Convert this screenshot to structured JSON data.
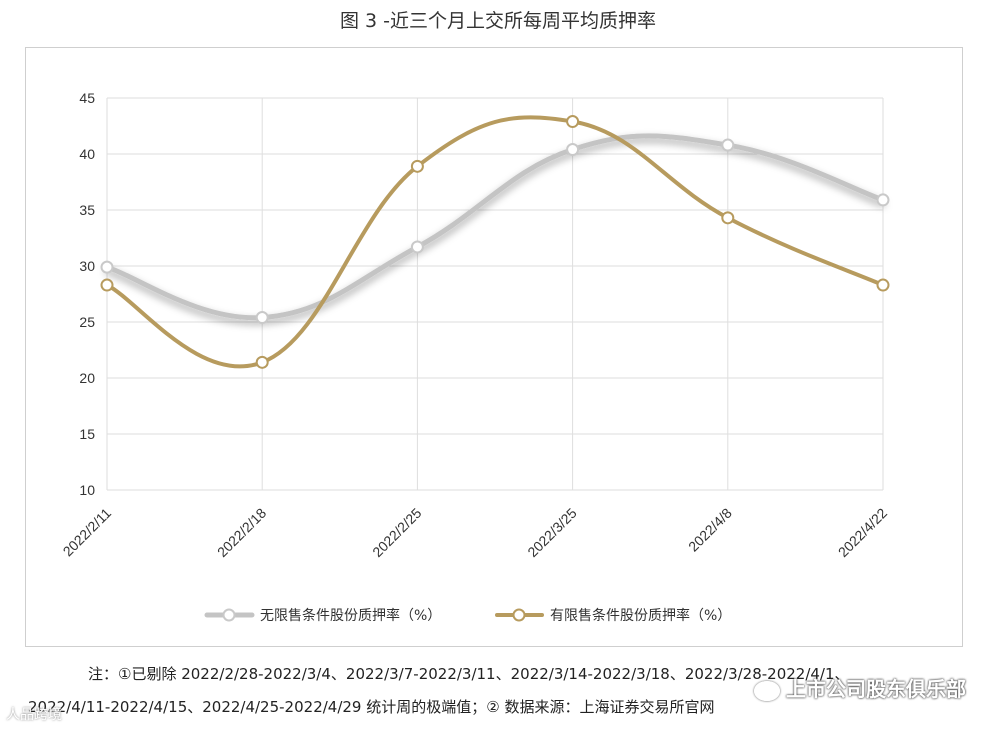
{
  "figure": {
    "title": "图 3 -近三个月上交所每周平均质押率"
  },
  "chart_data": {
    "type": "line",
    "categories": [
      "2022/2/11",
      "2022/2/18",
      "2022/2/25",
      "2022/3/25",
      "2022/4/8",
      "2022/4/22"
    ],
    "y_ticks": [
      "10",
      "15",
      "20",
      "25",
      "30",
      "35",
      "40",
      "45"
    ],
    "ylim": [
      10,
      45
    ],
    "grid": true,
    "legend_position": "bottom",
    "series": [
      {
        "name": "无限售条件股份质押率（%）",
        "color": "#c4c4c4",
        "values": [
          29.9,
          25.4,
          31.7,
          40.4,
          40.8,
          35.9
        ]
      },
      {
        "name": "有限售条件股份质押率（%）",
        "color": "#b79b5e",
        "values": [
          28.3,
          21.4,
          38.9,
          42.9,
          34.3,
          28.3
        ]
      }
    ]
  },
  "notes": {
    "line1": "注：①已剔除 2022/2/28-2022/3/4、2022/3/7-2022/3/11、2022/3/14-2022/3/18、2022/3/28-2022/4/1、",
    "line2": "2022/4/11-2022/4/15、2022/4/25-2022/4/29 统计周的极端值；② 数据来源：上海证券交易所官网"
  },
  "watermarks": {
    "right": "上市公司股东俱乐部",
    "left": "人品跨境"
  }
}
